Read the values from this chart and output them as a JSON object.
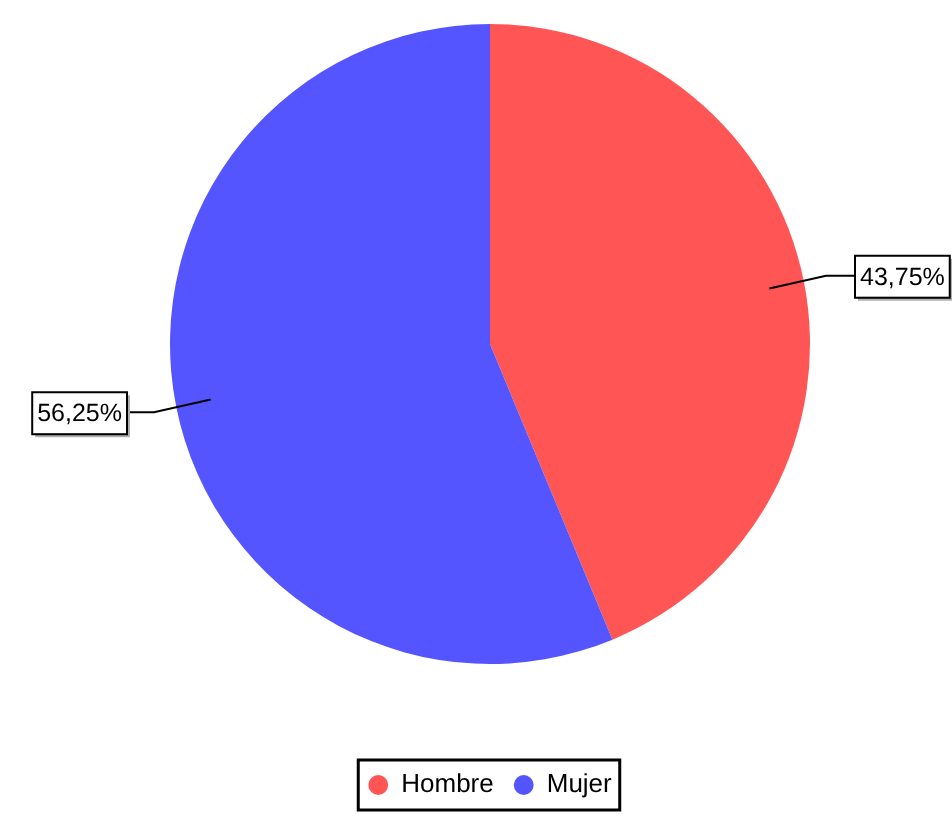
{
  "chart_data": {
    "type": "pie",
    "categories": [
      "Hombre",
      "Mujer"
    ],
    "values": [
      43.75,
      56.25
    ],
    "colors": [
      "#ff5555",
      "#5555ff"
    ],
    "value_labels": [
      "43,75%",
      "56,25%"
    ],
    "legend": "bottom"
  }
}
